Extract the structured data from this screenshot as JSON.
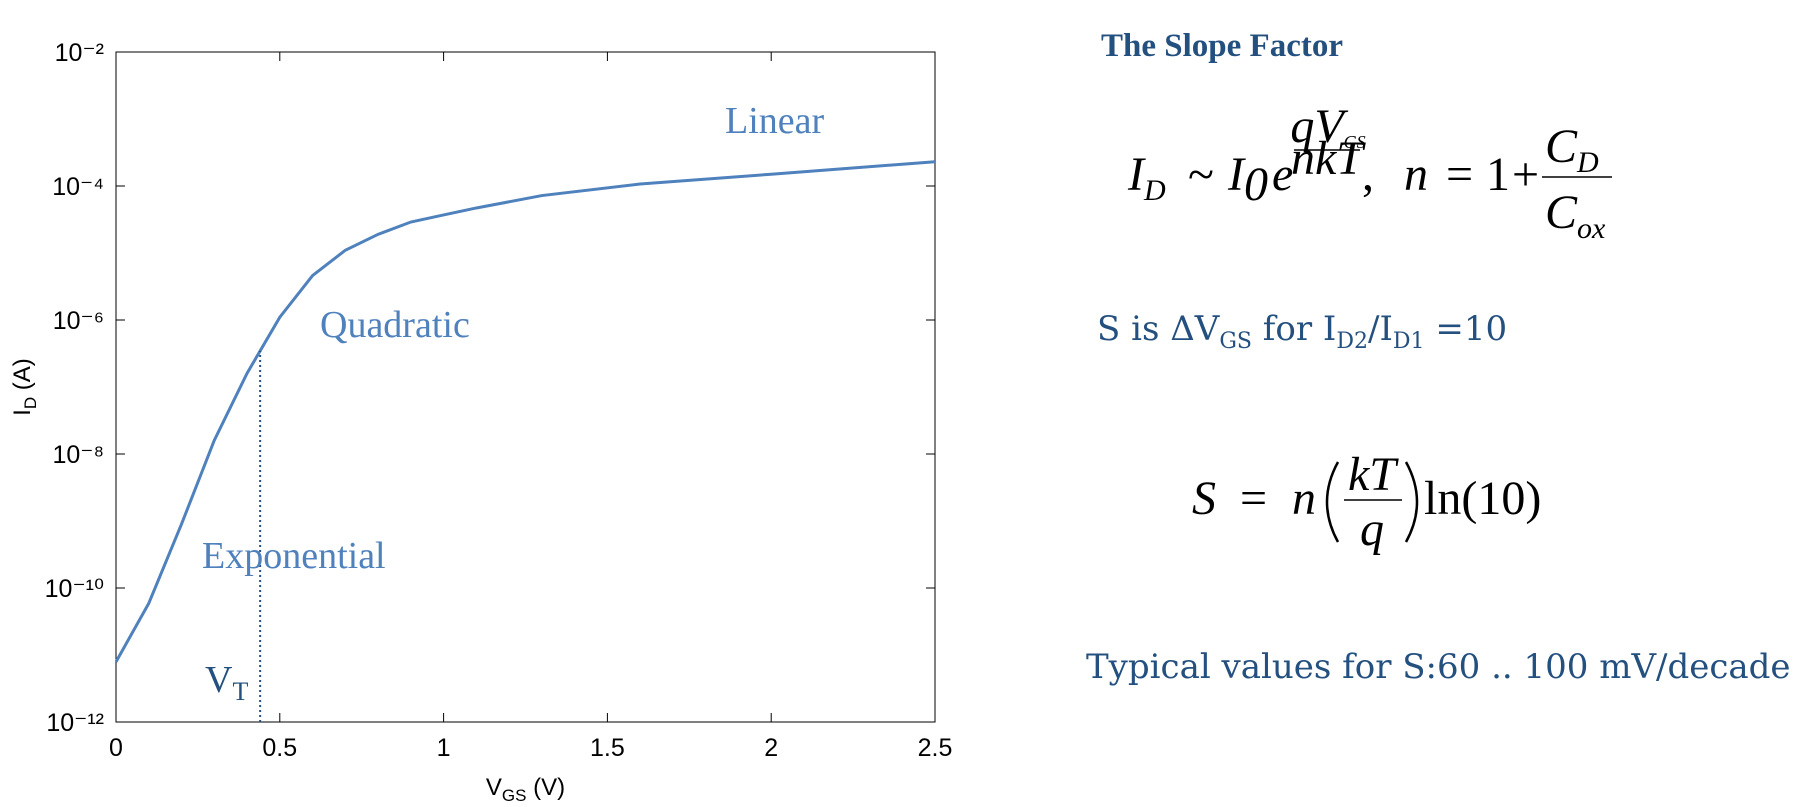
{
  "chart_data": {
    "type": "line",
    "x": [
      0,
      0.1,
      0.2,
      0.3,
      0.4,
      0.5,
      0.6,
      0.7,
      0.8,
      0.9,
      1.0,
      1.1,
      1.3,
      1.6,
      2.0,
      2.5
    ],
    "values": [
      7.9e-12,
      5.9e-11,
      9e-10,
      1.6e-08,
      1.6e-07,
      1.1e-06,
      4.6e-06,
      1.1e-05,
      1.9e-05,
      2.9e-05,
      3.7e-05,
      4.7e-05,
      7.2e-05,
      0.000107,
      0.00015,
      0.00023
    ],
    "color": "#4f81bd",
    "xlim": [
      0,
      2.5
    ],
    "xticks": [
      0,
      0.5,
      1,
      1.5,
      2,
      2.5
    ],
    "ylim": [
      1e-12,
      0.01
    ],
    "log_y": true,
    "yticks": [
      {
        "value": 1e-12,
        "label": "10⁻¹²"
      },
      {
        "value": 1e-10,
        "label": "10⁻¹⁰"
      },
      {
        "value": 1e-08,
        "label": "10⁻⁸"
      },
      {
        "value": 1e-06,
        "label": "10⁻⁶"
      },
      {
        "value": 0.0001,
        "label": "10⁻⁴"
      },
      {
        "value": 0.01,
        "label": "10⁻²"
      }
    ],
    "x_label": {
      "main": "V",
      "sub": "GS",
      "rest": " (V)"
    },
    "y_label": {
      "main": "I",
      "sub": "D",
      "rest": " (A)"
    },
    "annotations": [
      "Linear",
      "Quadratic",
      "Exponential"
    ],
    "vt_marker": {
      "x": 0.44,
      "main": "V",
      "sub": "T"
    }
  },
  "slide": {
    "title": "The Slope Factor",
    "equation1": [
      "I",
      "D",
      "~",
      "I",
      "0",
      "e",
      "qV",
      "GS",
      "nkT",
      ",",
      "n",
      "=",
      "1",
      "+",
      "C",
      "D",
      "C",
      "ox"
    ],
    "definition": [
      "S is ΔV",
      "GS",
      " for I",
      "D2",
      "/I",
      "D1",
      " =10"
    ],
    "equation2": [
      "S",
      "=",
      "n",
      "kT",
      "q",
      "ln(10)"
    ],
    "typical": "Typical values for S:60 .. 100 mV/decade"
  }
}
